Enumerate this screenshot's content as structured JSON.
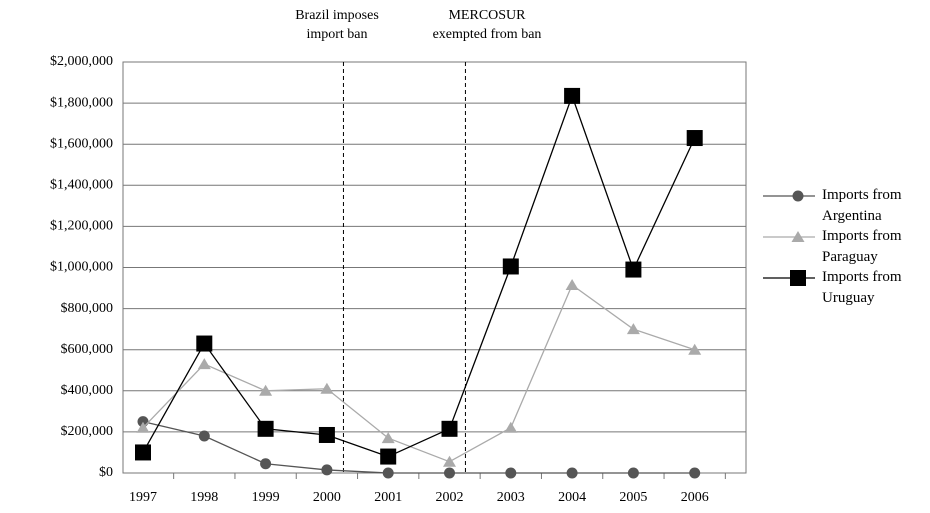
{
  "chart_data": {
    "type": "line",
    "categories": [
      "1997",
      "1998",
      "1999",
      "2000",
      "2001",
      "2002",
      "2003",
      "2004",
      "2005",
      "2006"
    ],
    "series": [
      {
        "name": "Imports from Argentina",
        "color": "#555555",
        "marker": "circle",
        "values": [
          250000,
          180000,
          45000,
          15000,
          0,
          0,
          0,
          0,
          0,
          0
        ]
      },
      {
        "name": "Imports from Paraguay",
        "color": "#aaaaaa",
        "marker": "triangle",
        "values": [
          220000,
          530000,
          400000,
          410000,
          170000,
          55000,
          220000,
          915000,
          700000,
          600000
        ]
      },
      {
        "name": "Imports from Uruguay",
        "color": "#000000",
        "marker": "square",
        "values": [
          100000,
          630000,
          215000,
          185000,
          80000,
          215000,
          1005000,
          1835000,
          990000,
          1630000
        ]
      }
    ],
    "annotations": [
      "Brazil imposes import ban",
      "MERCOSUR exempted from ban"
    ],
    "ylim": [
      0,
      2000000
    ],
    "yticks": [
      {
        "value": 0,
        "label": "$0"
      },
      {
        "value": 200000,
        "label": "$200,000"
      },
      {
        "value": 400000,
        "label": "$400,000"
      },
      {
        "value": 600000,
        "label": "$600,000"
      },
      {
        "value": 800000,
        "label": "$800,000"
      },
      {
        "value": 1000000,
        "label": "$1,000,000"
      },
      {
        "value": 1200000,
        "label": "$1,200,000"
      },
      {
        "value": 1400000,
        "label": "$1,400,000"
      },
      {
        "value": 1600000,
        "label": "$1,600,000"
      },
      {
        "value": 1800000,
        "label": "$1,800,000"
      },
      {
        "value": 2000000,
        "label": "$2,000,000"
      }
    ],
    "grid": true,
    "legend": "right"
  }
}
